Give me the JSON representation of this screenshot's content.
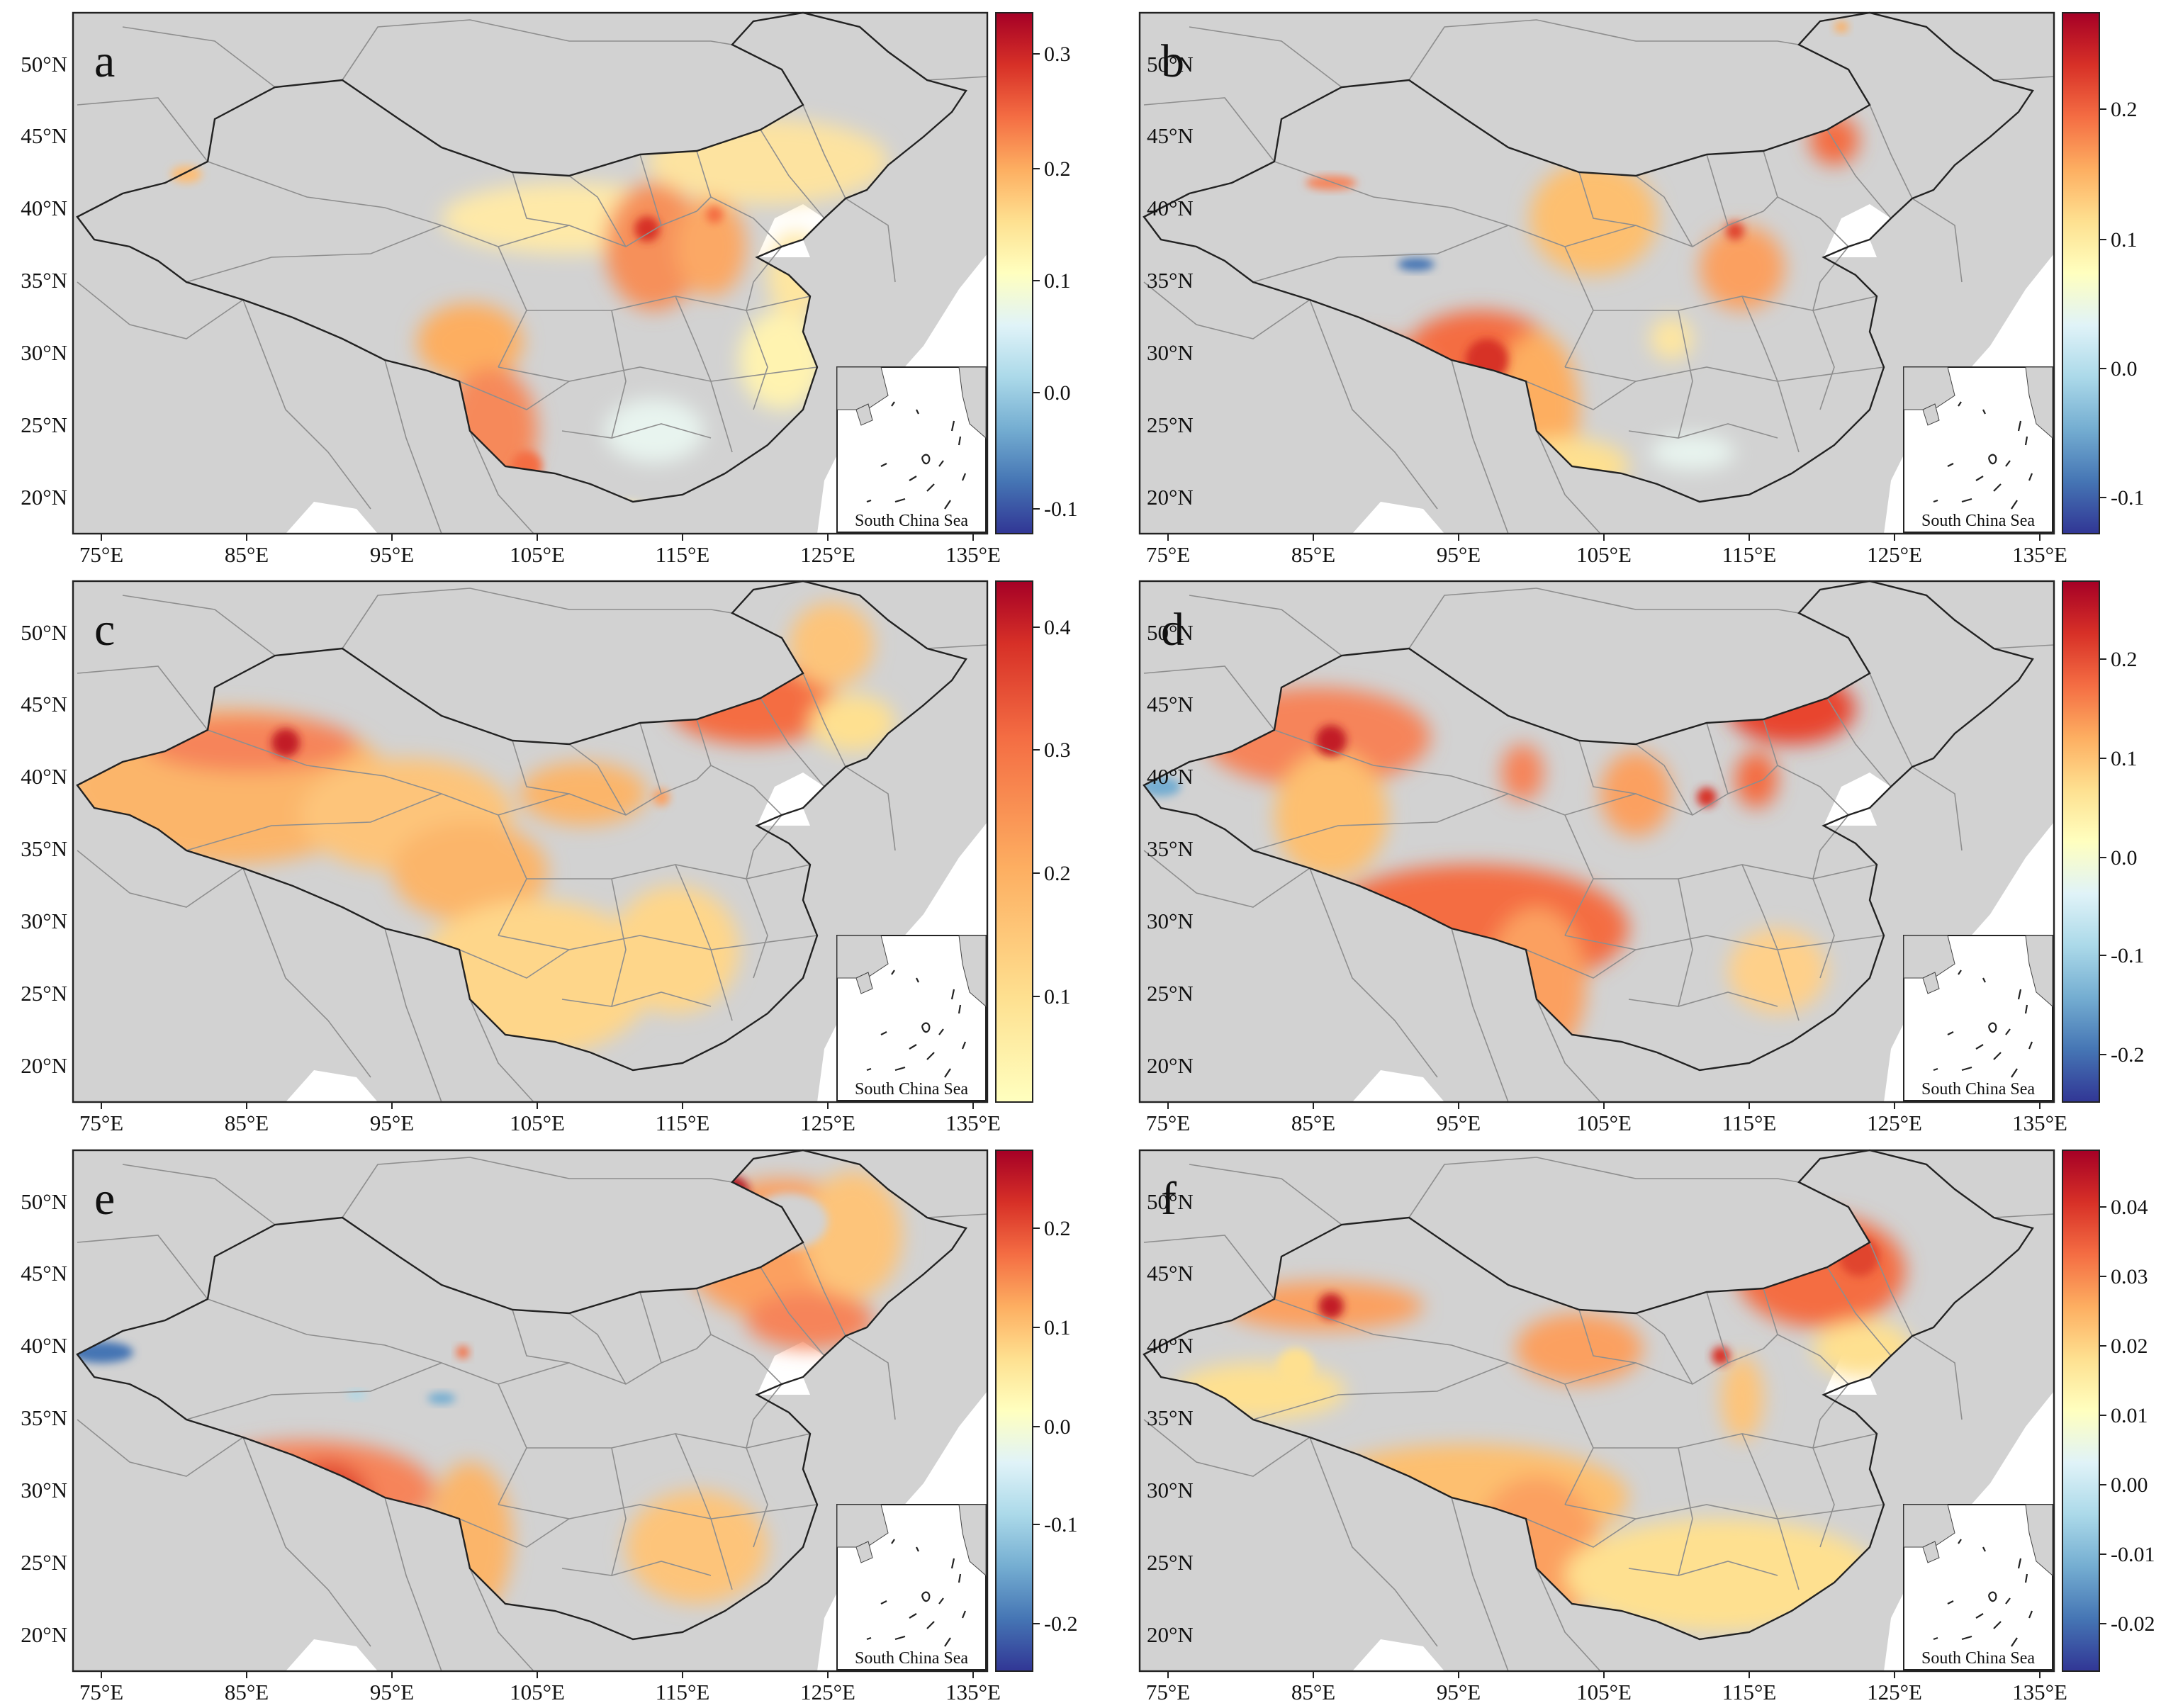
{
  "figure": {
    "lat_labels": [
      "50°N",
      "45°N",
      "40°N",
      "35°N",
      "30°N",
      "25°N",
      "20°N"
    ],
    "lon_labels": [
      "75°E",
      "85°E",
      "95°E",
      "105°E",
      "115°E",
      "125°E",
      "135°E"
    ],
    "inset_label": "South China Sea",
    "colors": {
      "land": "#d2d2d2",
      "sea": "#ffffff",
      "country_border": "#222222",
      "province_border": "#8e8e8e",
      "colormap": [
        "#313695",
        "#4575b4",
        "#74add1",
        "#abd9e9",
        "#e0f3f8",
        "#ffffbf",
        "#fee090",
        "#fdae61",
        "#f46d43",
        "#d73027",
        "#a50026"
      ]
    },
    "panels": [
      {
        "letter": "a",
        "colorbar": {
          "ticks": [
            "0.3",
            "0.2",
            "0.1",
            "0.0",
            "-0.1"
          ]
        }
      },
      {
        "letter": "b",
        "colorbar": {
          "ticks": [
            "0.2",
            "0.1",
            "0.0",
            "-0.1"
          ]
        }
      },
      {
        "letter": "c",
        "colorbar": {
          "ticks": [
            "0.4",
            "0.3",
            "0.2",
            "0.1"
          ]
        }
      },
      {
        "letter": "d",
        "colorbar": {
          "ticks": [
            "0.2",
            "0.1",
            "0.0",
            "-0.1",
            "-0.2"
          ]
        }
      },
      {
        "letter": "e",
        "colorbar": {
          "ticks": [
            "0.2",
            "0.1",
            "0.0",
            "-0.1",
            "-0.2"
          ]
        }
      },
      {
        "letter": "f",
        "colorbar": {
          "ticks": [
            "0.04",
            "0.03",
            "0.02",
            "0.01",
            "0.00",
            "-0.01",
            "-0.02"
          ]
        }
      }
    ]
  }
}
